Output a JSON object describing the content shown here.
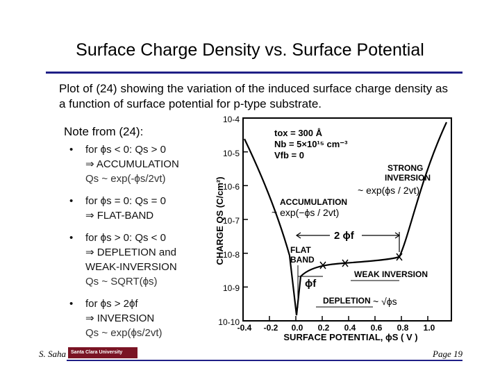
{
  "slide": {
    "title": "Surface Charge Density vs. Surface Potential",
    "intro": "Plot of (24) showing the variation of the induced surface charge density as a function of surface potential for p-type substrate.",
    "note_title": "Note from (24):",
    "bullets": [
      {
        "lines": [
          "for ϕs < 0: Qs > 0",
          "⇒ ACCUMULATION",
          "Qs ~ exp(-ϕs/2vt)"
        ]
      },
      {
        "lines": [
          "for ϕs = 0: Qs = 0",
          "⇒ FLAT-BAND"
        ]
      },
      {
        "lines": [
          "for ϕs > 0: Qs < 0",
          "⇒ DEPLETION and",
          "WEAK-INVERSION",
          "Qs ~ SQRT(ϕs)"
        ]
      },
      {
        "lines": [
          "for ϕs > 2ϕf",
          "⇒ INVERSION",
          "Qs ~ exp(ϕs/2vt)"
        ]
      }
    ],
    "footer_left": "S. Saha",
    "footer_logo": "Santa Clara University",
    "footer_right": "Page 19"
  },
  "plot": {
    "y_label": "CHARGE QS (C/cm²)",
    "x_label": "SURFACE POTENTIAL, ϕS ( V )",
    "y_ticks": [
      "10-4",
      "10-5",
      "10-6",
      "10-7",
      "10-8",
      "10-9",
      "10-10"
    ],
    "x_ticks": [
      "-0.4",
      "-0.2",
      "0.0",
      "0.2",
      "0.4",
      "0.6",
      "0.8",
      "1.0"
    ],
    "params": [
      "tox = 300 Å",
      "Nb = 5×10¹⁵ cm⁻³",
      "Vfb = 0"
    ],
    "labels": {
      "accumulation": "ACCUMULATION",
      "accum_eq": "~ exp(−ϕs / 2vt)",
      "strong_inv_1": "STRONG",
      "strong_inv_2": "INVERSION",
      "strong_eq": "~ exp(ϕs / 2vt)",
      "two_phi_f": "2 ϕf",
      "flat_band_1": "FLAT",
      "flat_band_2": "BAND",
      "phi_f": "ϕf",
      "weak_inversion": "WEAK INVERSION",
      "depletion": "DEPLETION",
      "depl_eq": "~ √ϕs"
    }
  }
}
